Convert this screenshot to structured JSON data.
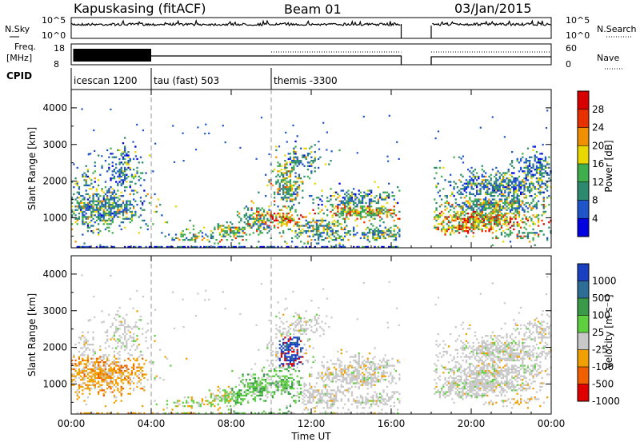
{
  "header": {
    "station": "Kapuskasing (fitACF)",
    "beam": "Beam 01",
    "date": "03/Jan/2015"
  },
  "top_panels": {
    "nsky_label": "N.Sky",
    "nsearch_label": "N.Search",
    "n_ticks": [
      "10^5",
      "10^0"
    ],
    "freq_label_line1": "Freq.",
    "freq_label_line2": "[MHz]",
    "freq_ticks": [
      "18",
      "8"
    ],
    "nave_label": "Nave",
    "nave_ticks": [
      "60",
      "0"
    ],
    "cpid_label": "CPID",
    "cpid_modes": [
      {
        "label": "icescan 1200",
        "start": 0.0,
        "end": 4.0
      },
      {
        "label": "tau (fast) 503",
        "start": 4.0,
        "end": 10.0
      },
      {
        "label": "themis -3300",
        "start": 10.0,
        "end": 16.5
      }
    ]
  },
  "chart_data": [
    {
      "type": "heatmap",
      "title": "Power",
      "ylabel": "Slant Range [km]",
      "xlabel": "Time UT",
      "xlim": [
        0,
        24
      ],
      "ylim": [
        180,
        4500
      ],
      "x_tick_labels": [
        "00:00",
        "04:00",
        "08:00",
        "12:00",
        "16:00",
        "20:00",
        "00:00"
      ],
      "y_tick_values": [
        1000,
        2000,
        3000,
        4000
      ],
      "y_tick_labels": [
        "1000",
        "2000",
        "3000",
        "4000"
      ],
      "colorbar_label": "Power [dB]",
      "colorbar_ticks": [
        "4",
        "8",
        "12",
        "16",
        "20",
        "24",
        "28"
      ],
      "colorbar_range": [
        0,
        30
      ],
      "colors": [
        "#0000e0",
        "#1e55c8",
        "#2e8a6e",
        "#3fae4e",
        "#e8d800",
        "#f09000",
        "#e83000",
        "#d80000"
      ],
      "data_gap_hours": [
        [
          16.5,
          18.0
        ]
      ],
      "mode_boundaries_hours": [
        4.0,
        10.0
      ]
    },
    {
      "type": "heatmap",
      "title": "Velocity",
      "ylabel": "Slant Range [km]",
      "xlabel": "Time UT",
      "xlim": [
        0,
        24
      ],
      "ylim": [
        180,
        4500
      ],
      "x_tick_labels": [
        "00:00",
        "04:00",
        "08:00",
        "12:00",
        "16:00",
        "20:00",
        "00:00"
      ],
      "y_tick_values": [
        1000,
        2000,
        3000,
        4000
      ],
      "y_tick_labels": [
        "1000",
        "2000",
        "3000",
        "4000"
      ],
      "colorbar_label": "Velocity [m s⁻¹]",
      "colorbar_ticks": [
        "1000",
        "500",
        "100",
        "25",
        "-25",
        "-100",
        "-500",
        "-1000"
      ],
      "colorbar_range": [
        -1000,
        1000
      ],
      "colors": [
        "#1a3fc0",
        "#2e6e96",
        "#3a9a4a",
        "#5ed040",
        "#c8c8c8",
        "#f0a000",
        "#f06000",
        "#e00000"
      ],
      "data_gap_hours": [
        [
          16.5,
          18.0
        ]
      ],
      "mode_boundaries_hours": [
        4.0,
        10.0
      ]
    }
  ],
  "x_axis_title": "Time UT"
}
